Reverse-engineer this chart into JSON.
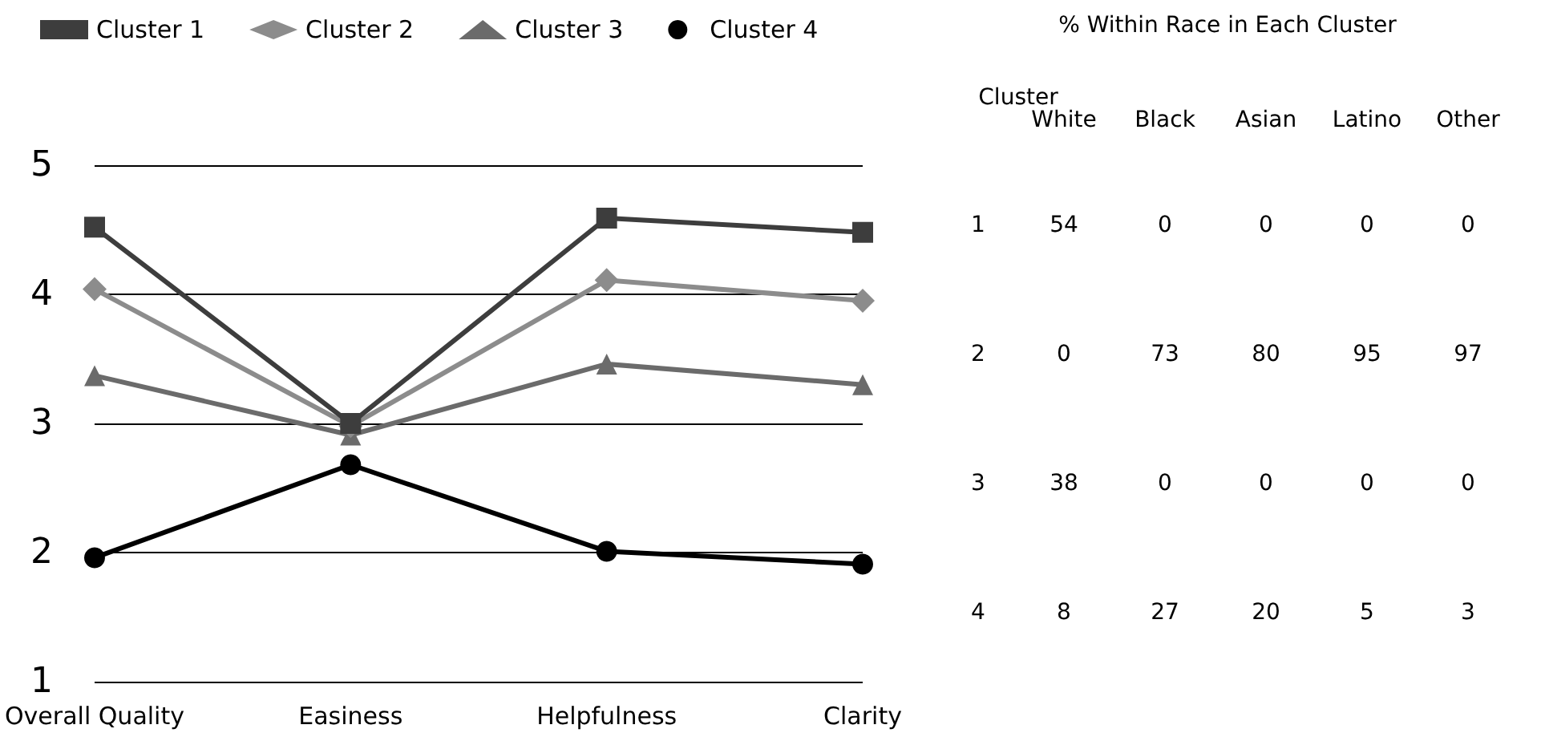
{
  "chart_data": [
    {
      "type": "line",
      "categories": [
        "Overall Quality",
        "Easiness",
        "Helpfulness",
        "Clarity"
      ],
      "ylim": [
        1,
        5
      ],
      "yticks": [
        1,
        2,
        3,
        4,
        5
      ],
      "grid": "y",
      "legend": "top left",
      "series": [
        {
          "name": "Cluster 1",
          "color": "#3d3d3d",
          "marker": "square",
          "values": [
            4.52,
            3.0,
            4.59,
            4.48
          ]
        },
        {
          "name": "Cluster 2",
          "color": "#8c8c8c",
          "marker": "diamond",
          "values": [
            4.04,
            2.98,
            4.11,
            3.95
          ]
        },
        {
          "name": "Cluster 3",
          "color": "#6b6b6b",
          "marker": "triangle",
          "values": [
            3.37,
            2.91,
            3.46,
            3.3
          ]
        },
        {
          "name": "Cluster 4",
          "color": "#000000",
          "marker": "circle",
          "values": [
            1.96,
            2.68,
            2.01,
            1.91
          ]
        }
      ]
    },
    {
      "type": "heatmap",
      "title": "% Within Race in Each Cluster",
      "ylabel": "Cluster",
      "categories": [
        "White",
        "Black",
        "Asian",
        "Latino",
        "Other"
      ],
      "y_categories": [
        "1",
        "2",
        "3",
        "4"
      ],
      "data_labels": true,
      "cells": [
        [
          54,
          0,
          0,
          0,
          0
        ],
        [
          0,
          73,
          80,
          95,
          97
        ],
        [
          38,
          0,
          0,
          0,
          0
        ],
        [
          8,
          27,
          20,
          5,
          3
        ]
      ]
    }
  ]
}
